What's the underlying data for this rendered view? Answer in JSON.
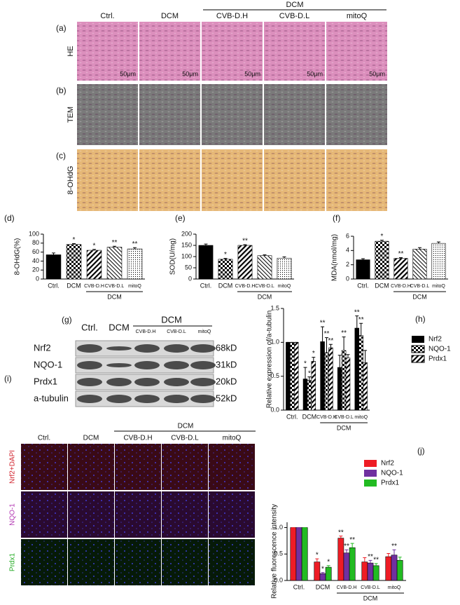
{
  "images": {
    "column_group": "DCM",
    "columns": [
      "Ctrl.",
      "DCM",
      "CVB-D.H",
      "CVB-D.L",
      "mitoQ"
    ],
    "rows": [
      {
        "panel": "(a)",
        "label": "HE"
      },
      {
        "panel": "(b)",
        "label": "TEM"
      },
      {
        "panel": "(c)",
        "label": "8-OHdG"
      }
    ],
    "scale_bar": "50μm"
  },
  "western_blot": {
    "panel": "(g)",
    "columns": [
      "Ctrl.",
      "DCM"
    ],
    "column_group": "DCM",
    "group_columns": [
      "CVB-D.H",
      "CVB-D.L",
      "mitoQ"
    ],
    "proteins": [
      {
        "name": "Nrf2",
        "size": "68kD"
      },
      {
        "name": "NQO-1",
        "size": "31kD"
      },
      {
        "name": "Prdx1",
        "size": "20kD"
      },
      {
        "name": "a-tubulin",
        "size": "52kD"
      }
    ]
  },
  "fluorescence": {
    "panel": "(i)",
    "column_group": "DCM",
    "columns": [
      "Ctrl.",
      "DCM",
      "CVB-D.H",
      "CVB-D.L",
      "mitoQ"
    ],
    "rows": [
      "Nrf2+DAPI",
      "NQO-1",
      "Prdx1"
    ]
  },
  "chart_data": [
    {
      "type": "bar",
      "panel": "(d)",
      "y_label": "8-OHdG(%)",
      "categories": [
        "Ctrl.",
        "DCM",
        "CVB-D.H",
        "CVB-D.L",
        "mitoQ"
      ],
      "group_label": "DCM",
      "values": [
        54,
        77,
        64,
        71,
        67
      ],
      "errors": [
        4,
        2,
        2,
        2,
        3
      ],
      "stars": [
        null,
        "*",
        "*",
        "**",
        "**"
      ],
      "color": "#000000",
      "fills": [
        "solid",
        "checker",
        "diag",
        "diag2",
        "dots"
      ],
      "ylim": [
        0,
        100
      ],
      "yticks": [
        0,
        20,
        40,
        60,
        80,
        100
      ]
    },
    {
      "type": "bar",
      "panel": "(e)",
      "y_label": "SOD(U/mg)",
      "categories": [
        "Ctrl.",
        "DCM",
        "CVB-D.H",
        "CVB-D.L",
        "mitoQ"
      ],
      "group_label": "DCM",
      "values": [
        150,
        88,
        150,
        104,
        93
      ],
      "errors": [
        6,
        4,
        3,
        4,
        6
      ],
      "stars": [
        null,
        "*",
        "**",
        null,
        null
      ],
      "color": "#000000",
      "fills": [
        "solid",
        "checker",
        "diag",
        "diag2",
        "dots"
      ],
      "ylim": [
        0,
        200
      ],
      "yticks": [
        0,
        50,
        100,
        150,
        200
      ]
    },
    {
      "type": "bar",
      "panel": "(f)",
      "y_label": "MDA(nmol/mg)",
      "categories": [
        "Ctrl.",
        "DCM",
        "CVB-D.H",
        "CVB-D.L",
        "mitoQ"
      ],
      "group_label": "DCM",
      "values": [
        2.7,
        5.3,
        2.9,
        4.2,
        5.0
      ],
      "errors": [
        0.15,
        0.15,
        0.1,
        0.2,
        0.2
      ],
      "stars": [
        null,
        "*",
        "**",
        null,
        null
      ],
      "color": "#000000",
      "fills": [
        "solid",
        "checker",
        "diag",
        "diag2",
        "dots"
      ],
      "ylim": [
        0,
        6
      ],
      "yticks": [
        0,
        2,
        4,
        6
      ]
    },
    {
      "type": "bar",
      "panel": "(h)",
      "y_label": "Relative expression of/a-tubulin",
      "categories": [
        "Ctrl.",
        "DCM",
        "CVB-D.H",
        "CVB-D.L",
        "mitoQ"
      ],
      "group_label": "DCM",
      "legend": "upper right",
      "ylim": [
        0,
        1.5
      ],
      "yticks": [
        {
          "value": 0,
          "label": "0.0"
        },
        {
          "value": 0.5,
          "label": "0.5"
        },
        {
          "value": 1,
          "label": "1.0"
        },
        {
          "value": 1.5,
          "label": "1.5"
        }
      ],
      "series": [
        {
          "name": "Nrf2",
          "color": "#000000",
          "pattern": "solid",
          "values": [
            1.0,
            0.46,
            1.01,
            0.63,
            1.21
          ],
          "errors": [
            0,
            0.17,
            0.22,
            0.18,
            0.18
          ],
          "stars": [
            null,
            "*",
            "**",
            null,
            "**"
          ]
        },
        {
          "name": "NQO-1",
          "color": "#000000",
          "pattern": "checker",
          "values": [
            1.0,
            0.44,
            0.85,
            0.88,
            1.1
          ],
          "errors": [
            0,
            0.05,
            0.22,
            0.2,
            0.18
          ],
          "stars": [
            null,
            "*",
            "**",
            "**",
            "**"
          ]
        },
        {
          "name": "Prdx1",
          "color": "#000000",
          "pattern": "diag",
          "values": [
            1.0,
            0.72,
            0.92,
            0.77,
            0.7
          ],
          "errors": [
            0,
            0.06,
            0.05,
            0.05,
            0.18
          ],
          "stars": [
            null,
            "*",
            "**",
            null,
            null
          ]
        }
      ]
    },
    {
      "type": "bar",
      "panel": "(j)",
      "y_label": "Relative fluorescence intensity",
      "categories": [
        "Ctrl.",
        "DCM",
        "CVB-D.H",
        "CVB-D.L",
        "mitoQ"
      ],
      "group_label": "DCM",
      "legend": "upper right",
      "ylim": [
        0,
        1.1
      ],
      "yticks": [
        {
          "value": 0,
          "label": "0.0"
        },
        {
          "value": 0.5,
          "label": "0.5"
        },
        {
          "value": 1,
          "label": "1.0"
        }
      ],
      "series": [
        {
          "name": "Nrf2",
          "color": "#ee1c25",
          "pattern": "solid",
          "values": [
            1.0,
            0.35,
            0.8,
            0.35,
            0.45
          ],
          "errors": [
            0,
            0.06,
            0.04,
            0.08,
            0.06
          ],
          "stars": [
            null,
            "*",
            "**",
            null,
            null
          ]
        },
        {
          "name": "NQO-1",
          "color": "#7030a0",
          "pattern": "solid",
          "values": [
            1.0,
            0.13,
            0.52,
            0.33,
            0.48
          ],
          "errors": [
            0,
            0.02,
            0.06,
            0.05,
            0.1
          ],
          "stars": [
            null,
            "*",
            "**",
            "**",
            "**"
          ]
        },
        {
          "name": "Prdx1",
          "color": "#22bb22",
          "pattern": "solid",
          "values": [
            1.0,
            0.25,
            0.62,
            0.28,
            0.38
          ],
          "errors": [
            0,
            0.03,
            0.08,
            0.04,
            0.06
          ],
          "stars": [
            null,
            "*",
            "**",
            "**",
            null
          ]
        }
      ]
    }
  ]
}
